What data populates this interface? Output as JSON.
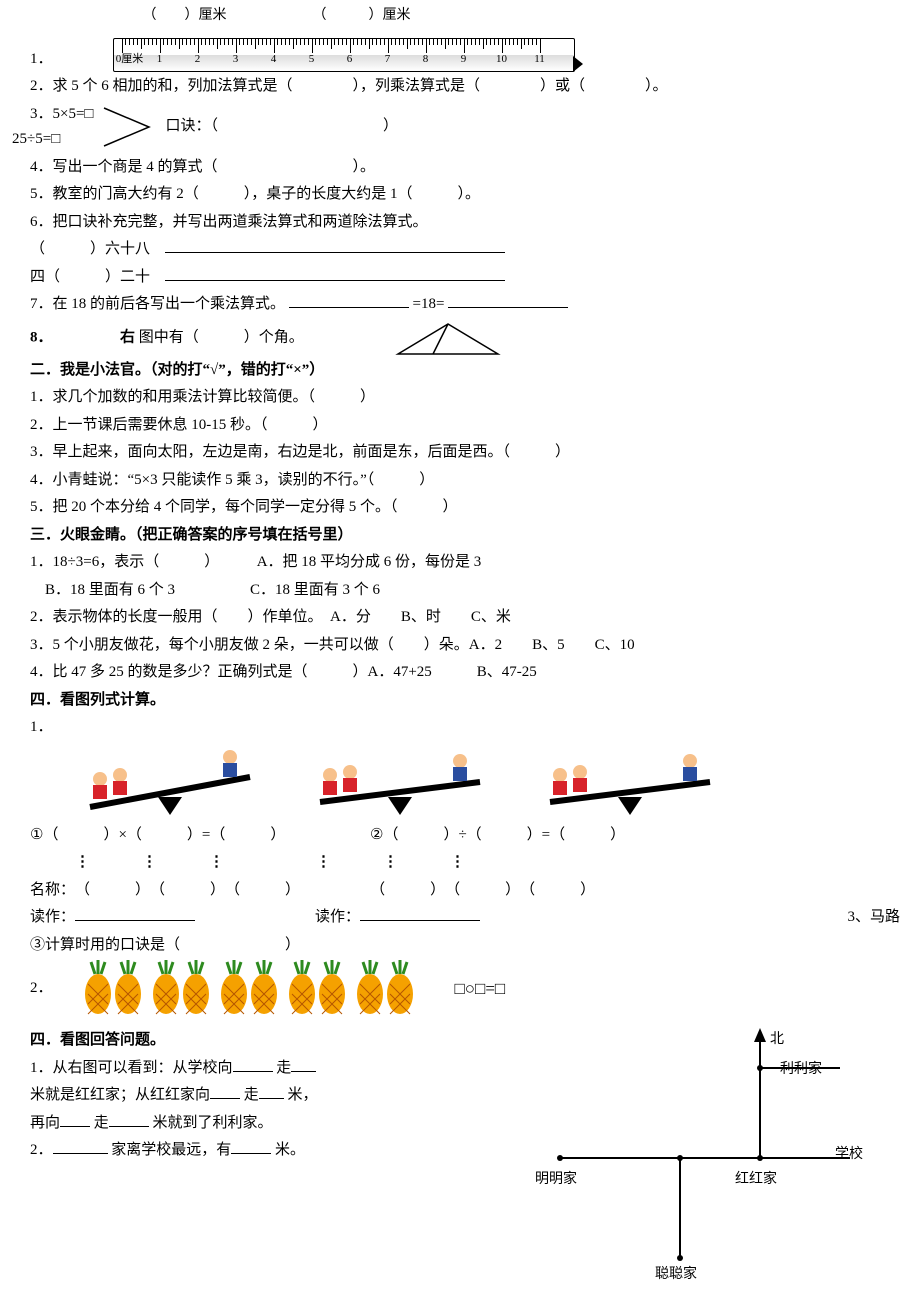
{
  "q1": {
    "num": "1．",
    "bracket1": "（　　）厘米",
    "bracket2": "（　　　）厘米",
    "zero": "0厘米",
    "ticks": [
      "1",
      "2",
      "3",
      "4",
      "5",
      "6",
      "7",
      "8",
      "9",
      "10",
      "11"
    ]
  },
  "q2": {
    "text": "2．求 5 个 6 相加的和，列加法算式是（　　　　），列乘法算式是（　　　　）或（　　　　）。"
  },
  "q3": {
    "line1": "3．5×5=□",
    "line2": "25÷5=□",
    "koujue": "口诀：（　　　　　　　　　　　）"
  },
  "q4": {
    "text": "4．写出一个商是 4 的算式（　　　　　　　　　）。"
  },
  "q5": {
    "text": "5．教室的门高大约有 2（　　　），桌子的长度大约是 1（　　　）。"
  },
  "q6": {
    "head": "6．把口诀补充完整，并写出两道乘法算式和两道除法算式。",
    "l1": "（　　　）六十八　",
    "l2": "四（　　　）二十　"
  },
  "q7": {
    "text": "7．在 18 的前后各写出一个乘法算式。",
    "mid": "=18="
  },
  "q8": {
    "num": "8．",
    "bold": "右",
    "rest": " 图中有（　　　）个角。"
  },
  "s2": {
    "title": "二．我是小法官。（对的打“√”，错的打“×”）",
    "i1": "1．求几个加数的和用乘法计算比较简便。（　　　）",
    "i2": "2．上一节课后需要休息 10-15 秒。（　　　）",
    "i3": "3．早上起来，面向太阳，左边是南，右边是北，前面是东，后面是西。（　　　）",
    "i4": "4．小青蛙说：“5×3 只能读作 5 乘 3，读别的不行。”（　　　）",
    "i5": "5．把 20 个本分给 4 个同学，每个同学一定分得 5 个。（　　　）"
  },
  "s3": {
    "title": "三．火眼金睛。（把正确答案的序号填在括号里）",
    "i1": "1．18÷3=6，表示（　　　）　　　A．把 18 平均分成 6 份，每份是 3",
    "i1b": "　B．18 里面有 6 个 3　　　　　C．18 里面有 3 个 6",
    "i2": "2．表示物体的长度一般用（　　）作单位。　A．分　　B、时　　C、米",
    "i3": "3．5 个小朋友做花，每个小朋友做 2 朵，一共可以做（　　）朵。A．2　　B、5　　C、10",
    "i4": "4．比 47 多 25 的数是多少？正确列式是（　　　）A．47+25　　　B、47-25"
  },
  "s4a": {
    "title": "四．看图列式计算。",
    "n1": "1．",
    "eq1": "①（　　　）×（　　　）=（　　　）",
    "eq2": "②（　　　）÷（　　　）=（　　　）",
    "names_label": "名称：",
    "paren": "（　　　）",
    "read": "读作：",
    "koujue3": "③计算时用的口诀是（　　　　　　　）",
    "n2": "2．",
    "box_eq": "□○□=□",
    "side": "3、马路"
  },
  "s4b": {
    "title": "四．看图回答问题。",
    "l1a": "1．从右图可以看到：从学校向",
    "l1b": "走",
    "l2a": "米就是红红家；从红红家向",
    "l2b": "走",
    "l2c": "米，",
    "l3a": "再向",
    "l3b": "走",
    "l3c": "米就到了利利家。",
    "l4a": "2．",
    "l4b": "家离学校最远，有",
    "l4c": "米。",
    "north": "北",
    "lili": "利利家",
    "school": "学校",
    "mingming": "明明家",
    "honghong": "红红家",
    "congcong": "聪聪家"
  },
  "colors": {
    "kid_red": "#d8232a",
    "kid_blue": "#2b4ea0",
    "kid_skin": "#f7c08a",
    "pine_body": "#f5a100",
    "pine_dark": "#b55600",
    "pine_leaf": "#2e8b1f"
  }
}
